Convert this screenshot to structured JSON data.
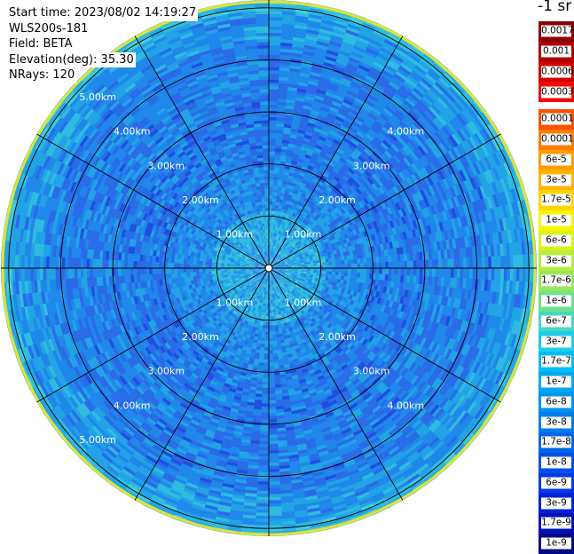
{
  "info": {
    "start_time": "Start time: 2023/08/02 14:19:27",
    "instrument": "WLS200s-181",
    "field": "Field: BETA",
    "elevation": "Elevation(deg): 35.30",
    "nrays": "NRays: 120"
  },
  "colorbar": {
    "unit": "-1 sr",
    "top_group": [
      {
        "label": "0.0017",
        "color": "#8b0000"
      },
      {
        "label": "0.001",
        "color": "#b00000"
      },
      {
        "label": "0.0006",
        "color": "#d40000"
      },
      {
        "label": "0.0003",
        "color": "#f40a0a"
      }
    ],
    "main_group": [
      {
        "label": "0.00017",
        "color": "#ff5000"
      },
      {
        "label": "0.0001",
        "color": "#ff7c00"
      },
      {
        "label": "6e-5",
        "color": "#ff9a00"
      },
      {
        "label": "3e-5",
        "color": "#ffb400"
      },
      {
        "label": "1.7e-5",
        "color": "#ffd600"
      },
      {
        "label": "1e-5",
        "color": "#f6f600"
      },
      {
        "label": "6e-6",
        "color": "#d8f21a"
      },
      {
        "label": "3e-6",
        "color": "#b8ee3a"
      },
      {
        "label": "1.7e-6",
        "color": "#96e85a"
      },
      {
        "label": "1e-6",
        "color": "#6ee08e"
      },
      {
        "label": "6e-7",
        "color": "#44d8c0"
      },
      {
        "label": "3e-7",
        "color": "#1ecde6"
      },
      {
        "label": "1.7e-7",
        "color": "#00bdf2"
      },
      {
        "label": "1e-7",
        "color": "#00a8f0"
      },
      {
        "label": "6e-8",
        "color": "#0092ee"
      },
      {
        "label": "3e-8",
        "color": "#007cec"
      },
      {
        "label": "1.7e-8",
        "color": "#0066ea"
      },
      {
        "label": "1e-8",
        "color": "#0050e8"
      },
      {
        "label": "6e-9",
        "color": "#003ae6"
      },
      {
        "label": "3e-9",
        "color": "#0022d8"
      },
      {
        "label": "1.7e-9",
        "color": "#0010b8"
      },
      {
        "label": "1e-9",
        "color": "#000a80"
      }
    ]
  },
  "chart_data": {
    "type": "heatmap",
    "projection": "polar PPI",
    "rings_km": [
      1,
      2,
      3,
      4,
      5
    ],
    "ring_labels": [
      "1.00km",
      "2.00km",
      "3.00km",
      "4.00km",
      "5.00km"
    ],
    "spokes_deg": [
      0,
      30,
      60,
      90,
      120,
      150,
      180,
      210,
      240,
      270,
      300,
      330
    ],
    "n_rays": 120,
    "elevation_deg": 35.3,
    "field": "BETA",
    "scale": "log"
  }
}
